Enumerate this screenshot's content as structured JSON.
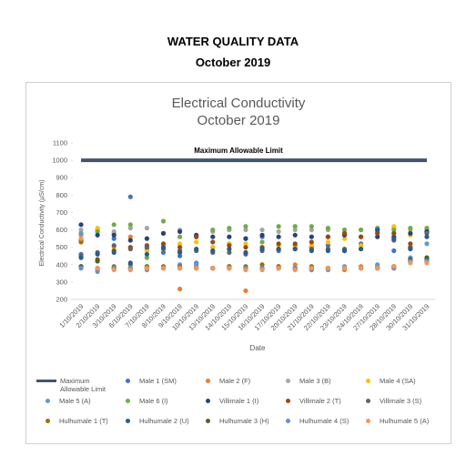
{
  "header": {
    "title": "WATER QUALITY DATA",
    "subtitle": "October 2019"
  },
  "chart_data": {
    "type": "scatter",
    "title": "Electrical Conductivity",
    "subtitle": "October 2019",
    "x_label": "Date",
    "y_label": "Electrical Conductivity (µS/cm)",
    "annotation": "Maximum Allowable Limit",
    "ylim": [
      200,
      1100
    ],
    "yticks": [
      200,
      300,
      400,
      500,
      600,
      700,
      800,
      900,
      1000,
      1100
    ],
    "categories": [
      "1/10/2019",
      "2/10/2019",
      "3/10/2019",
      "6/10/2019",
      "7/10/2019",
      "8/10/2019",
      "9/10/2019",
      "10/10/2019",
      "13/10/2019",
      "14/10/2019",
      "15/10/2019",
      "16/10/2019",
      "17/10/2019",
      "20/10/2019",
      "21/10/2019",
      "22/10/2019",
      "23/10/2019",
      "24/10/2019",
      "27/10/2019",
      "28/10/2019",
      "30/10/2019",
      "31/10/2019"
    ],
    "series": [
      {
        "name": "Maximum Allowable Limit",
        "color": "#44546a",
        "line": true,
        "values": [
          1000,
          1000,
          1000,
          1000,
          1000,
          1000,
          1000,
          1000,
          1000,
          1000,
          1000,
          1000,
          1000,
          1000,
          1000,
          1000,
          1000,
          1000,
          1000,
          1000,
          1000,
          1000
        ]
      },
      {
        "name": "Male 1 (SM)",
        "color": "#4472c4",
        "values": [
          460,
          380,
          550,
          790,
          490,
          470,
          450,
          560,
          500,
          520,
          550,
          560,
          480,
          510,
          500,
          510,
          480,
          520,
          590,
          480,
          500,
          590
        ]
      },
      {
        "name": "Male 2 (F)",
        "color": "#ed7d31",
        "values": [
          570,
          590,
          580,
          560,
          380,
          380,
          260,
          390,
          380,
          380,
          250,
          380,
          390,
          400,
          380,
          380,
          370,
          390,
          390,
          390,
          430,
          420
        ]
      },
      {
        "name": "Male 3 (B)",
        "color": "#a5a5a5",
        "values": [
          600,
          600,
          590,
          610,
          610,
          580,
          600,
          570,
          590,
          600,
          600,
          600,
          590,
          600,
          600,
          600,
          600,
          600,
          610,
          610,
          600,
          600
        ]
      },
      {
        "name": "Male 4 (SA)",
        "color": "#ffc000",
        "values": [
          540,
          610,
          500,
          500,
          480,
          510,
          520,
          530,
          500,
          520,
          520,
          500,
          510,
          500,
          510,
          530,
          550,
          510,
          590,
          620,
          570,
          580
        ]
      },
      {
        "name": "Male 5 (A)",
        "color": "#5b9bd5",
        "values": [
          580,
          370,
          380,
          380,
          390,
          380,
          400,
          400,
          380,
          390,
          380,
          380,
          380,
          370,
          370,
          370,
          390,
          380,
          400,
          390,
          440,
          520
        ]
      },
      {
        "name": "Male 6 (I)",
        "color": "#70ad47",
        "values": [
          390,
          590,
          630,
          630,
          440,
          650,
          560,
          410,
          600,
          610,
          620,
          530,
          620,
          620,
          620,
          610,
          600,
          600,
          610,
          600,
          610,
          610
        ]
      },
      {
        "name": "Villimale 1 (I)",
        "color": "#264478",
        "values": [
          630,
          570,
          570,
          540,
          550,
          580,
          590,
          570,
          560,
          560,
          550,
          570,
          560,
          570,
          560,
          560,
          570,
          560,
          560,
          560,
          580,
          590
        ]
      },
      {
        "name": "Villimale 2 (T)",
        "color": "#9e480e",
        "values": [
          540,
          430,
          480,
          500,
          510,
          520,
          500,
          560,
          530,
          510,
          500,
          500,
          520,
          520,
          530,
          560,
          580,
          560,
          580,
          580,
          520,
          430
        ]
      },
      {
        "name": "Villimale 3 (S)",
        "color": "#636363",
        "values": [
          450,
          470,
          510,
          490,
          500,
          490,
          480,
          480,
          470,
          470,
          460,
          480,
          490,
          490,
          490,
          490,
          490,
          490,
          600,
          540,
          500,
          580
        ]
      },
      {
        "name": "Hulhumale 1 (T)",
        "color": "#997300",
        "values": [
          530,
          420,
          390,
          400,
          390,
          390,
          390,
          380,
          380,
          390,
          390,
          400,
          390,
          380,
          390,
          380,
          380,
          380,
          380,
          390,
          420,
          440
        ]
      },
      {
        "name": "Hulhumale 2 (U)",
        "color": "#255e91",
        "values": [
          440,
          460,
          470,
          410,
          460,
          500,
          470,
          490,
          480,
          490,
          470,
          490,
          490,
          490,
          480,
          480,
          480,
          490,
          600,
          550,
          490,
          560
        ]
      },
      {
        "name": "Hulhumale 3 (H)",
        "color": "#43682b",
        "values": [
          390,
          420,
          380,
          380,
          380,
          380,
          380,
          380,
          380,
          380,
          380,
          380,
          380,
          380,
          380,
          380,
          380,
          380,
          380,
          380,
          430,
          440
        ]
      },
      {
        "name": "Hulhumale 4 (S)",
        "color": "#698ed0",
        "values": [
          380,
          360,
          380,
          380,
          370,
          380,
          380,
          410,
          380,
          380,
          380,
          380,
          380,
          380,
          370,
          380,
          380,
          380,
          380,
          380,
          420,
          420
        ]
      },
      {
        "name": "Hulhumale 5 (A)",
        "color": "#f1975a",
        "values": [
          550,
          380,
          370,
          370,
          380,
          380,
          380,
          380,
          380,
          380,
          370,
          370,
          380,
          370,
          380,
          380,
          380,
          380,
          380,
          390,
          410,
          410
        ]
      }
    ]
  }
}
